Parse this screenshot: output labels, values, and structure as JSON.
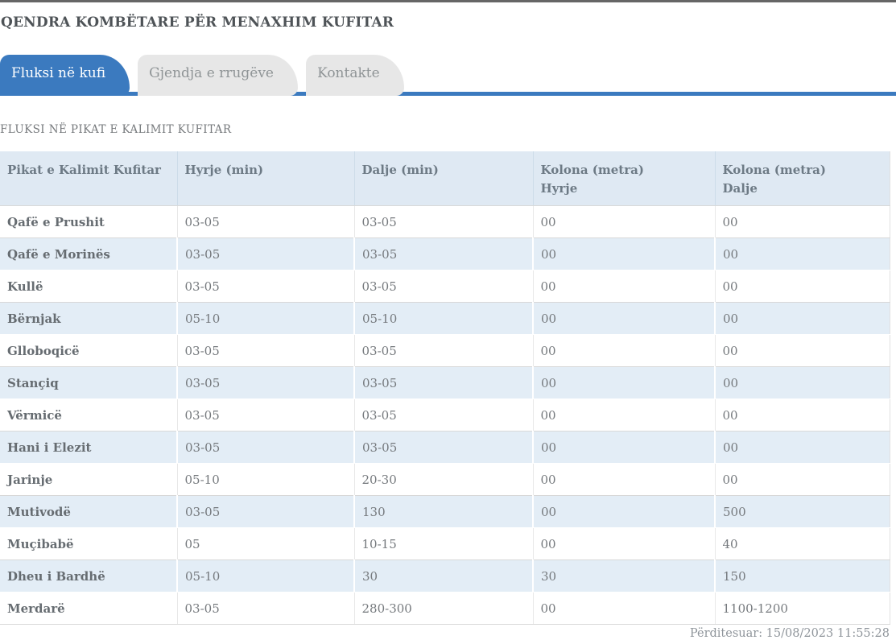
{
  "header": {
    "title": "QENDRA KOMBËTARE PËR MENAXHIM KUFITAR"
  },
  "tabs": [
    {
      "label": "Fluksi në kufi",
      "active": true
    },
    {
      "label": "Gjendja e rrugëve",
      "active": false
    },
    {
      "label": "Kontakte",
      "active": false
    }
  ],
  "section": {
    "title": "FLUKSI NË PIKAT E KALIMIT KUFITAR"
  },
  "table": {
    "columns": [
      {
        "t1": "Pikat e Kalimit Kufitar",
        "t2": ""
      },
      {
        "t1": "Hyrje (min)",
        "t2": ""
      },
      {
        "t1": "Dalje (min)",
        "t2": ""
      },
      {
        "t1": "Kolona (metra)",
        "t2": "Hyrje"
      },
      {
        "t1": "Kolona (metra)",
        "t2": "Dalje"
      }
    ],
    "rows": [
      {
        "name": "Qafë e Prushit",
        "values": [
          "03-05",
          "03-05",
          "00",
          "00"
        ]
      },
      {
        "name": "Qafë e Morinës",
        "values": [
          "03-05",
          "03-05",
          "00",
          "00"
        ]
      },
      {
        "name": "Kullë",
        "values": [
          "03-05",
          "03-05",
          "00",
          "00"
        ]
      },
      {
        "name": "Bërnjak",
        "values": [
          "05-10",
          "05-10",
          "00",
          "00"
        ]
      },
      {
        "name": "Glloboqicë",
        "values": [
          "03-05",
          "03-05",
          "00",
          "00"
        ]
      },
      {
        "name": "Stançiq",
        "values": [
          "03-05",
          "03-05",
          "00",
          "00"
        ]
      },
      {
        "name": "Vërmicë",
        "values": [
          "03-05",
          "03-05",
          "00",
          "00"
        ]
      },
      {
        "name": "Hani i Elezit",
        "values": [
          "03-05",
          "03-05",
          "00",
          "00"
        ]
      },
      {
        "name": "Jarinje",
        "values": [
          "05-10",
          "20-30",
          "00",
          "00"
        ]
      },
      {
        "name": "Mutivodë",
        "values": [
          "03-05",
          "130",
          "00",
          "500"
        ]
      },
      {
        "name": "Muçibabë",
        "values": [
          "05",
          "10-15",
          "00",
          "40"
        ]
      },
      {
        "name": "Dheu i Bardhë",
        "values": [
          "05-10",
          "30",
          "30",
          "150"
        ]
      },
      {
        "name": "Merdarë",
        "values": [
          "03-05",
          "280-300",
          "00",
          "1100-1200"
        ]
      }
    ]
  },
  "footer": {
    "updated": "Përditesuar: 15/08/2023 11:55:28"
  },
  "colors": {
    "accent_blue": "#3b7abf",
    "table_header_bg": "#dfe9f3",
    "row_alt_bg": "#e3edf6",
    "inactive_tab_bg": "#e7e7e7",
    "top_bar": "#666666"
  }
}
